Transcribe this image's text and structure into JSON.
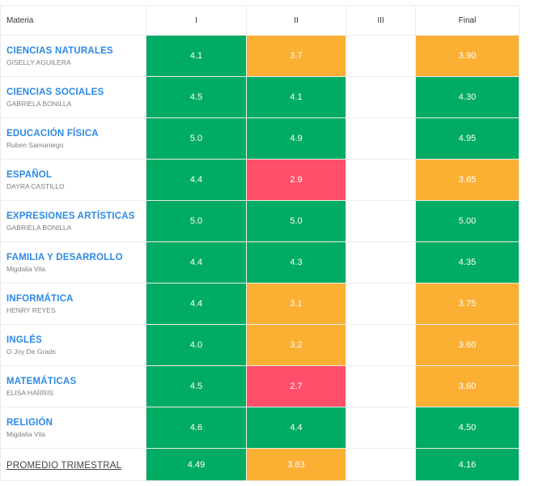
{
  "header": {
    "subject": "Materia",
    "t1": "I",
    "t2": "II",
    "t3": "III",
    "final": "Final"
  },
  "colors": {
    "green": "#00ab63",
    "orange": "#fbb034",
    "red": "#ff4f6a",
    "link_blue": "#2d8ae6"
  },
  "rows": [
    {
      "subject": "CIENCIAS NATURALES",
      "teacher": "GISELLY AGUILERA",
      "t1": "4.1",
      "t2": "3.7",
      "t3": "",
      "final": "3.90",
      "c1": "green",
      "c2": "orange",
      "cf": "orange"
    },
    {
      "subject": "CIENCIAS SOCIALES",
      "teacher": "GABRIELA BONILLA",
      "t1": "4.5",
      "t2": "4.1",
      "t3": "",
      "final": "4.30",
      "c1": "green",
      "c2": "green",
      "cf": "green"
    },
    {
      "subject": "EDUCACIÓN FÍSICA",
      "teacher": "Ruben Samaniego",
      "t1": "5.0",
      "t2": "4.9",
      "t3": "",
      "final": "4.95",
      "c1": "green",
      "c2": "green",
      "cf": "green"
    },
    {
      "subject": "ESPAÑOL",
      "teacher": "DAYRA CASTILLO",
      "t1": "4.4",
      "t2": "2.9",
      "t3": "",
      "final": "3.65",
      "c1": "green",
      "c2": "red",
      "cf": "orange"
    },
    {
      "subject": "EXPRESIONES ARTÍSTICAS",
      "teacher": "GABRIELA BONILLA",
      "t1": "5.0",
      "t2": "5.0",
      "t3": "",
      "final": "5.00",
      "c1": "green",
      "c2": "green",
      "cf": "green"
    },
    {
      "subject": "FAMILIA Y DESARROLLO",
      "teacher": "Migdalia Vila",
      "t1": "4.4",
      "t2": "4.3",
      "t3": "",
      "final": "4.35",
      "c1": "green",
      "c2": "green",
      "cf": "green"
    },
    {
      "subject": "INFORMÁTICA",
      "teacher": "HENRY REYES",
      "t1": "4.4",
      "t2": "3.1",
      "t3": "",
      "final": "3.75",
      "c1": "green",
      "c2": "orange",
      "cf": "orange"
    },
    {
      "subject": "INGLÉS",
      "teacher": "O Joy De Grads",
      "t1": "4.0",
      "t2": "3.2",
      "t3": "",
      "final": "3.60",
      "c1": "green",
      "c2": "orange",
      "cf": "orange"
    },
    {
      "subject": "MATEMÁTICAS",
      "teacher": "ELISA HARRIS",
      "t1": "4.5",
      "t2": "2.7",
      "t3": "",
      "final": "3.60",
      "c1": "green",
      "c2": "red",
      "cf": "orange"
    },
    {
      "subject": "RELIGIÓN",
      "teacher": "Migdalia Vila",
      "t1": "4.6",
      "t2": "4.4",
      "t3": "",
      "final": "4.50",
      "c1": "green",
      "c2": "green",
      "cf": "green"
    }
  ],
  "average": {
    "label": "PROMEDIO TRIMESTRAL",
    "t1": "4.49",
    "t2": "3.83",
    "t3": "",
    "final": "4.16",
    "c1": "green",
    "c2": "orange",
    "cf": "green"
  }
}
